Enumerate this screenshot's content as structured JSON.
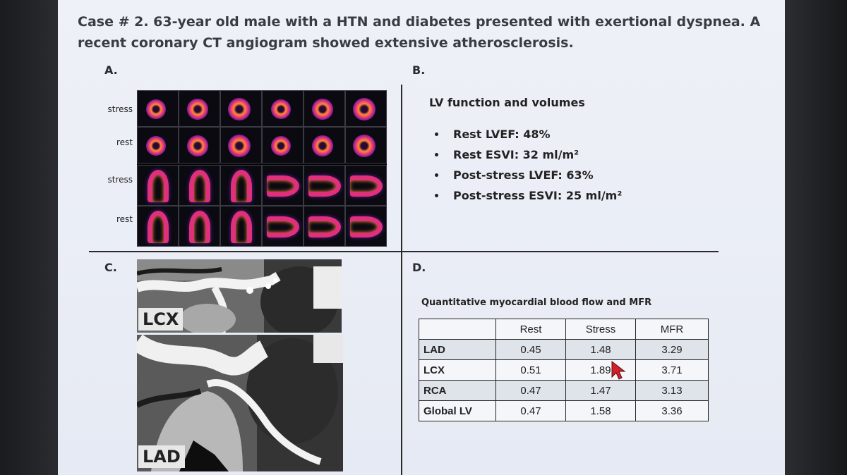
{
  "slide": {
    "title": "Case # 2. 63-year old male with a HTN and diabetes presented with exertional dyspnea. A recent coronary CT angiogram showed extensive atherosclerosis."
  },
  "panel_a": {
    "label": "A.",
    "rows": [
      "stress",
      "rest",
      "stress",
      "rest"
    ]
  },
  "panel_b": {
    "label": "B.",
    "heading": "LV function and volumes",
    "items": [
      "Rest LVEF: 48%",
      "Rest ESVI: 32 ml/m²",
      "Post-stress LVEF: 63%",
      "Post-stress ESVI: 25 ml/m²"
    ]
  },
  "panel_c": {
    "label": "C.",
    "images": [
      {
        "label": "LCX"
      },
      {
        "label": "LAD"
      }
    ]
  },
  "panel_d": {
    "label": "D.",
    "heading": "Quantitative myocardial blood flow and MFR",
    "columns": [
      "",
      "Rest",
      "Stress",
      "MFR"
    ],
    "rows": [
      {
        "name": "LAD",
        "rest": "0.45",
        "stress": "1.48",
        "mfr": "3.29"
      },
      {
        "name": "LCX",
        "rest": "0.51",
        "stress": "1.89",
        "mfr": "3.71"
      },
      {
        "name": "RCA",
        "rest": "0.47",
        "stress": "1.47",
        "mfr": "3.13"
      },
      {
        "name": "Global LV",
        "rest": "0.47",
        "stress": "1.58",
        "mfr": "3.36"
      }
    ]
  },
  "colors": {
    "slide_bg": "#eef1f7",
    "text": "#222222",
    "cursor": "#d0202a"
  }
}
